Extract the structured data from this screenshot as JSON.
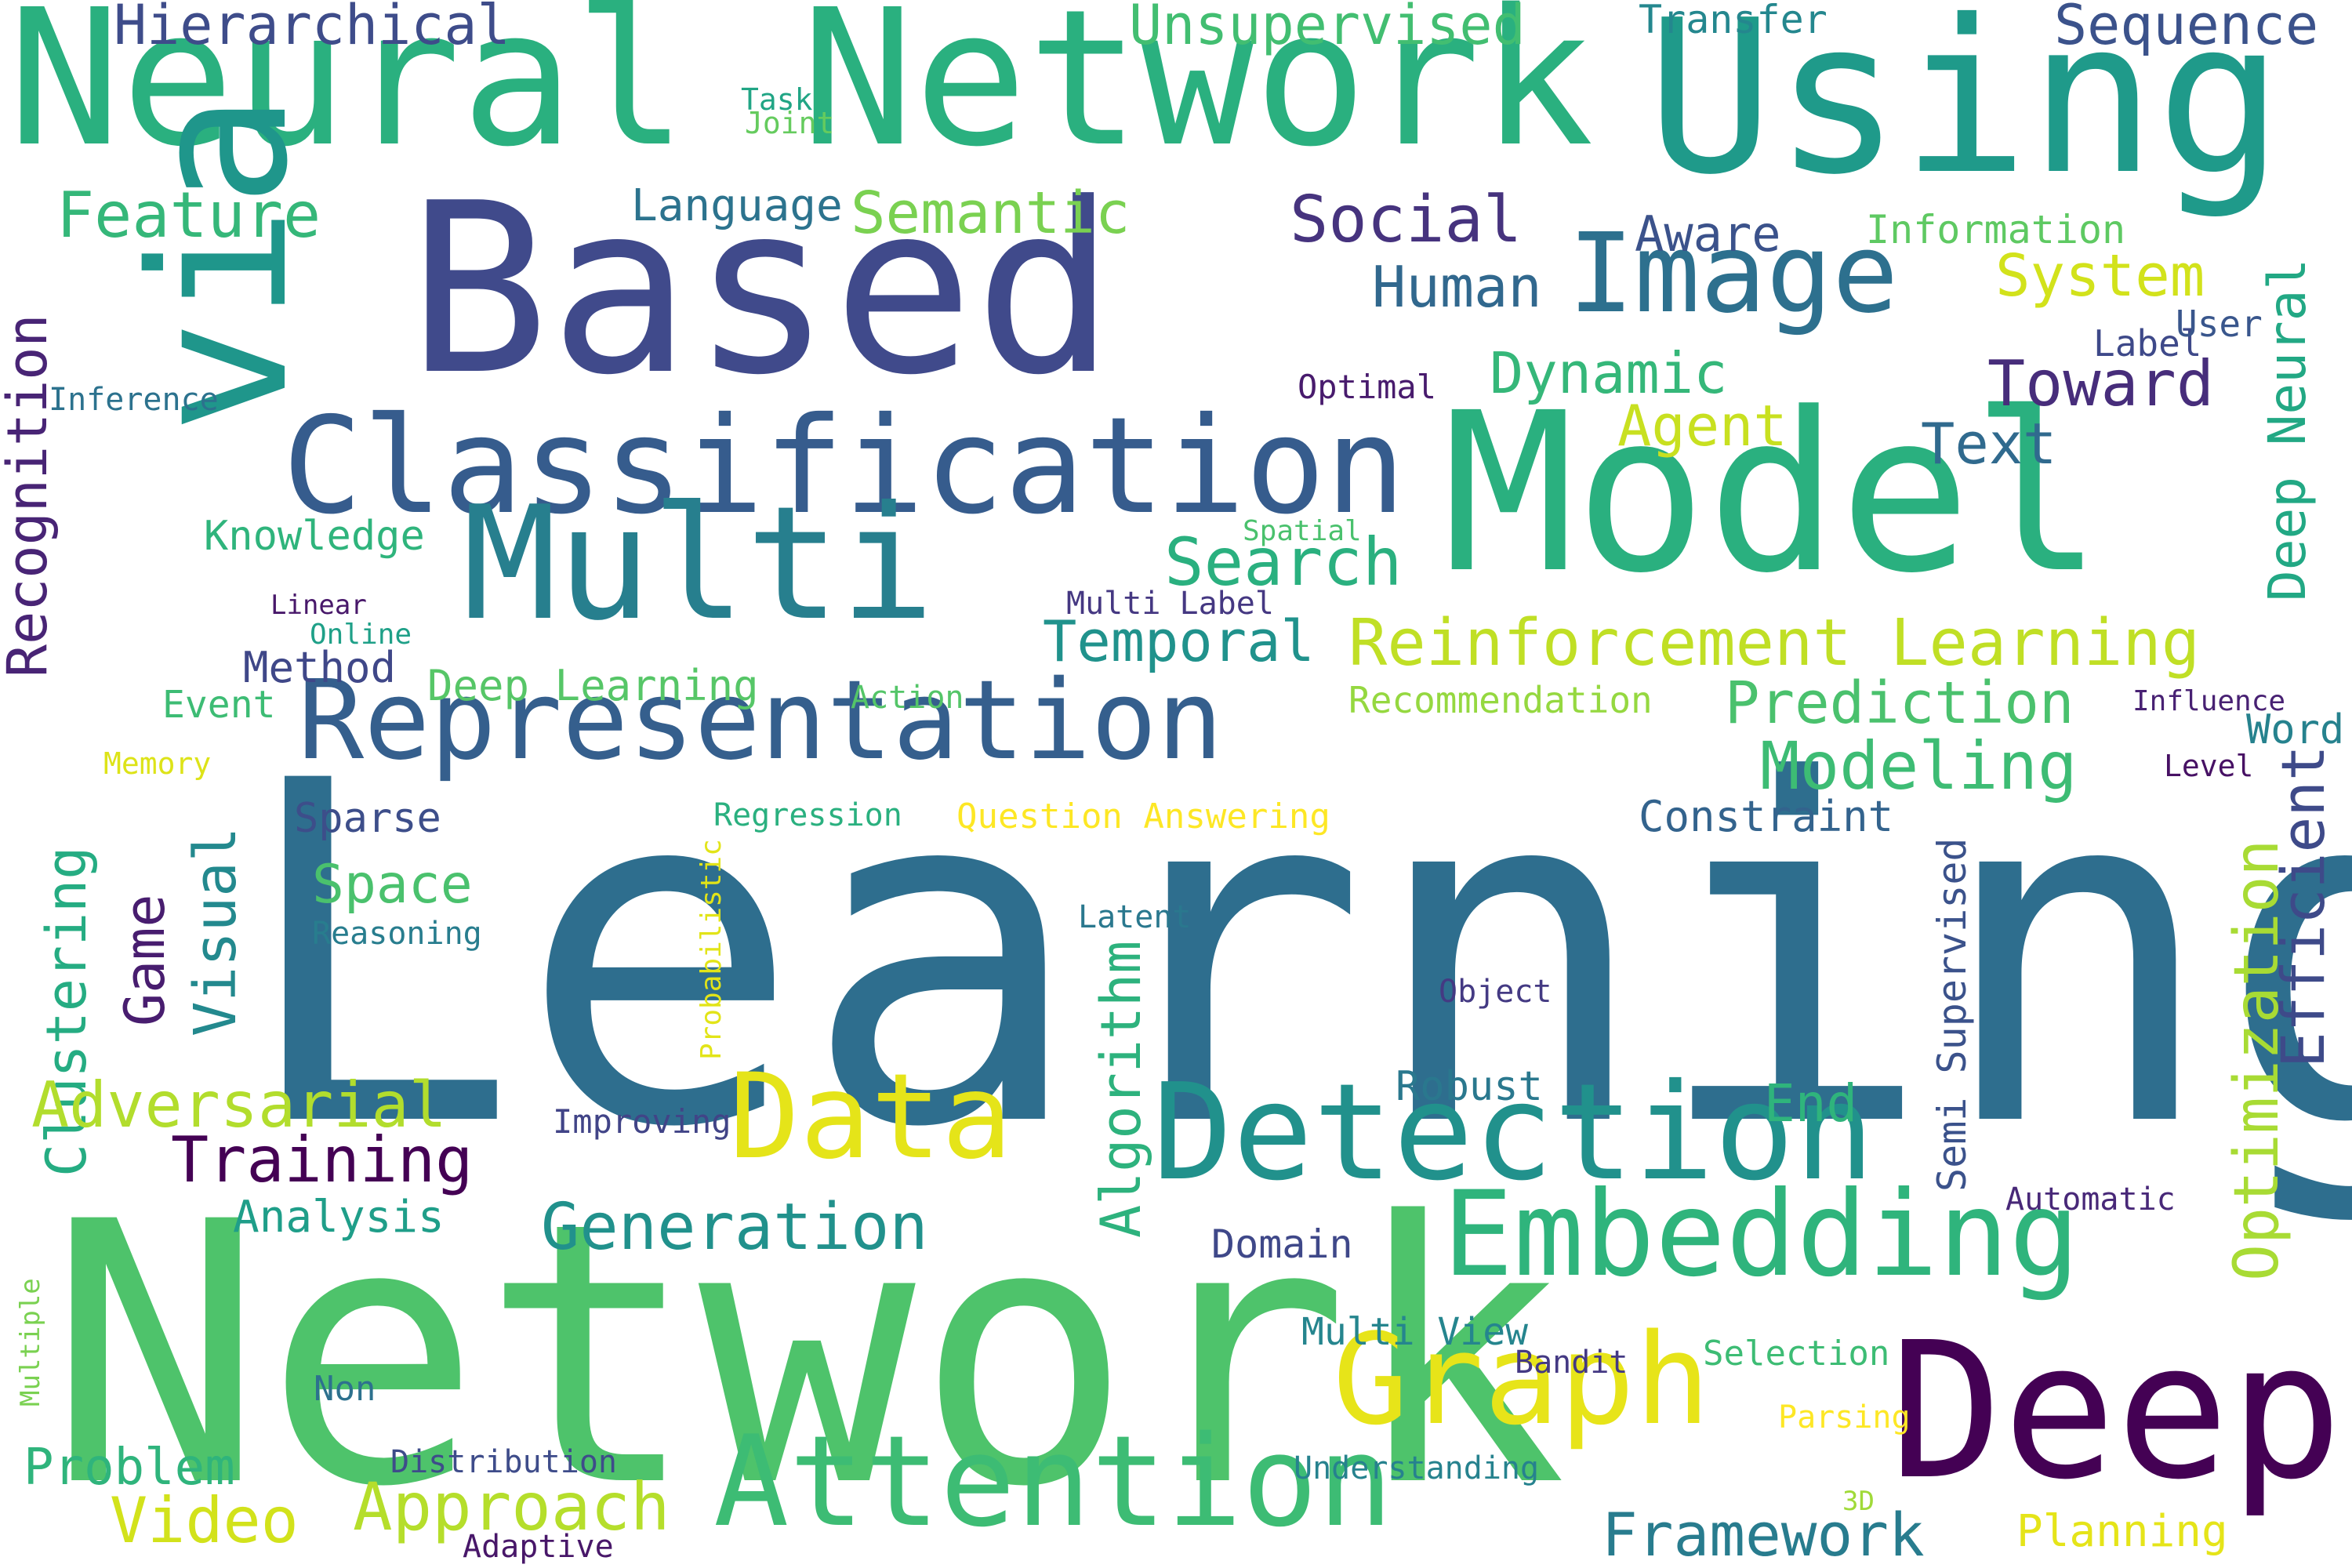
{
  "words": [
    {
      "text": "Learning",
      "color": "#2e6e8e"
    },
    {
      "text": "Network",
      "color": "#4ec36b"
    },
    {
      "text": "Neural Network",
      "color": "#2ab07f"
    },
    {
      "text": "Using",
      "color": "#1f9a8a"
    },
    {
      "text": "Based",
      "color": "#404a8b"
    },
    {
      "text": "Model",
      "color": "#2ab07f"
    },
    {
      "text": "via",
      "color": "#1f968b"
    },
    {
      "text": "Classification",
      "color": "#365c8d"
    },
    {
      "text": "Multi",
      "color": "#277f8e"
    },
    {
      "text": "Representation",
      "color": "#355f8d"
    },
    {
      "text": "Deep",
      "color": "#440154"
    },
    {
      "text": "Detection",
      "color": "#21918c"
    },
    {
      "text": "Embedding",
      "color": "#2fb47c"
    },
    {
      "text": "Attention",
      "color": "#3dbc74"
    },
    {
      "text": "Graph",
      "color": "#e7e419"
    },
    {
      "text": "Data",
      "color": "#e5e419"
    },
    {
      "text": "Image",
      "color": "#2d708e"
    },
    {
      "text": "Reinforcement Learning",
      "color": "#c0df25"
    },
    {
      "text": "Hierarchical",
      "color": "#3e4c8a"
    },
    {
      "text": "Unsupervised",
      "color": "#42be71"
    },
    {
      "text": "Transfer",
      "color": "#24878e"
    },
    {
      "text": "Sequence",
      "color": "#3b528b"
    },
    {
      "text": "Task",
      "color": "#21a585"
    },
    {
      "text": "Joint",
      "color": "#65cb5e"
    },
    {
      "text": "Feature",
      "color": "#35b779"
    },
    {
      "text": "Language",
      "color": "#2c738e"
    },
    {
      "text": "Semantic",
      "color": "#7ad151"
    },
    {
      "text": "Social",
      "color": "#46337e"
    },
    {
      "text": "Aware",
      "color": "#3b528b"
    },
    {
      "text": "Information",
      "color": "#5ec962"
    },
    {
      "text": "Human",
      "color": "#31688e"
    },
    {
      "text": "System",
      "color": "#d2e21b"
    },
    {
      "text": "Label",
      "color": "#3e4989"
    },
    {
      "text": "User",
      "color": "#39568c"
    },
    {
      "text": "Deep Neural",
      "color": "#22a884"
    },
    {
      "text": "Dynamic",
      "color": "#35b779"
    },
    {
      "text": "Toward",
      "color": "#472d7b"
    },
    {
      "text": "Optimal",
      "color": "#481b6d"
    },
    {
      "text": "Agent",
      "color": "#c8e020"
    },
    {
      "text": "Text",
      "color": "#306a8e"
    },
    {
      "text": "Inference",
      "color": "#2c728e"
    },
    {
      "text": "Recognition",
      "color": "#482475"
    },
    {
      "text": "Knowledge",
      "color": "#2fb47c"
    },
    {
      "text": "Spatial",
      "color": "#4ac16d"
    },
    {
      "text": "Search",
      "color": "#2ab07f"
    },
    {
      "text": "Linear",
      "color": "#48186a"
    },
    {
      "text": "Online",
      "color": "#1fa088"
    },
    {
      "text": "Multi Label",
      "color": "#453882"
    },
    {
      "text": "Temporal",
      "color": "#20928c"
    },
    {
      "text": "Method",
      "color": "#3f4788"
    },
    {
      "text": "Deep Learning",
      "color": "#56c667"
    },
    {
      "text": "Event",
      "color": "#3dbc74"
    },
    {
      "text": "Action",
      "color": "#54c568"
    },
    {
      "text": "Recommendation",
      "color": "#95d840"
    },
    {
      "text": "Prediction",
      "color": "#4ac16d"
    },
    {
      "text": "Influence",
      "color": "#482173"
    },
    {
      "text": "Word",
      "color": "#26828e"
    },
    {
      "text": "Memory",
      "color": "#dde318"
    },
    {
      "text": "Modeling",
      "color": "#3dbc74"
    },
    {
      "text": "Level",
      "color": "#471164"
    },
    {
      "text": "Efficient",
      "color": "#3e4a89"
    },
    {
      "text": "Sparse",
      "color": "#3d4e8a"
    },
    {
      "text": "Regression",
      "color": "#2ab07f"
    },
    {
      "text": "Question Answering",
      "color": "#fde725"
    },
    {
      "text": "Constraint",
      "color": "#33638d"
    },
    {
      "text": "Clustering",
      "color": "#25ac82"
    },
    {
      "text": "Game",
      "color": "#481d6f"
    },
    {
      "text": "Visual",
      "color": "#23898e"
    },
    {
      "text": "Space",
      "color": "#4ac16d"
    },
    {
      "text": "Reasoning",
      "color": "#287d8e"
    },
    {
      "text": "Probabilistic",
      "color": "#e2e418"
    },
    {
      "text": "Latent",
      "color": "#2a788e"
    },
    {
      "text": "Semi Supervised",
      "color": "#3b528b"
    },
    {
      "text": "Optimization",
      "color": "#a8db34"
    },
    {
      "text": "Object",
      "color": "#443a83"
    },
    {
      "text": "Algorithm",
      "color": "#2db27d"
    },
    {
      "text": "Adversarial",
      "color": "#b2dd2d"
    },
    {
      "text": "Robust",
      "color": "#2a788e"
    },
    {
      "text": "End",
      "color": "#2fb47c"
    },
    {
      "text": "Improving",
      "color": "#414487"
    },
    {
      "text": "Training",
      "color": "#440154"
    },
    {
      "text": "Generation",
      "color": "#21918c"
    },
    {
      "text": "Analysis",
      "color": "#1f9e89"
    },
    {
      "text": "Automatic",
      "color": "#482878"
    },
    {
      "text": "Domain",
      "color": "#3f4889"
    },
    {
      "text": "Multiple",
      "color": "#7ad151"
    },
    {
      "text": "Multi View",
      "color": "#25858e"
    },
    {
      "text": "Bandit",
      "color": "#443983"
    },
    {
      "text": "Selection",
      "color": "#3dbc74"
    },
    {
      "text": "Non",
      "color": "#2d718e"
    },
    {
      "text": "Parsing",
      "color": "#fde725"
    },
    {
      "text": "Problem",
      "color": "#2fb47c"
    },
    {
      "text": "Distribution",
      "color": "#3e4c8a"
    },
    {
      "text": "Understanding",
      "color": "#26828e"
    },
    {
      "text": "3D",
      "color": "#a0da39"
    },
    {
      "text": "Video",
      "color": "#d2e21b"
    },
    {
      "text": "Approach",
      "color": "#b5de2b"
    },
    {
      "text": "Framework",
      "color": "#287c8e"
    },
    {
      "text": "Planning",
      "color": "#e5e419"
    },
    {
      "text": "Adaptive",
      "color": "#481769"
    }
  ]
}
